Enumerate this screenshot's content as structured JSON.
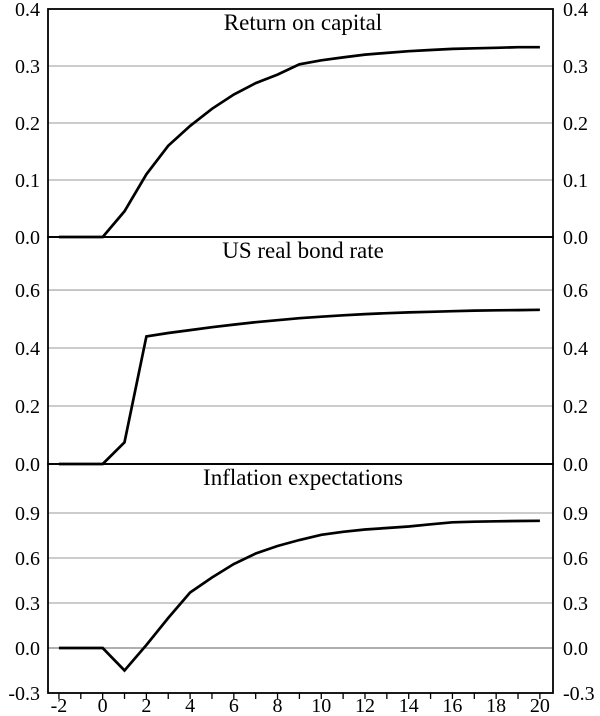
{
  "figure": {
    "background": "#ffffff",
    "series_color": "#000000",
    "grid_color": "#aeaeae",
    "zero_line_color": "#7f7f7f",
    "frame_color": "#000000"
  },
  "x_axis": {
    "range": [
      -2.5,
      20.6
    ],
    "minor_tick_min": -2,
    "minor_tick_max": 20,
    "minor_tick_step": 1,
    "labeled_values": [
      -2,
      0,
      2,
      4,
      6,
      8,
      10,
      12,
      14,
      16,
      18,
      20
    ],
    "labels": [
      "-2",
      "0",
      "2",
      "4",
      "6",
      "8",
      "10",
      "12",
      "14",
      "16",
      "18",
      "20"
    ]
  },
  "chart_data": [
    {
      "type": "line",
      "title": "Return on capital",
      "ylim": [
        0,
        0.4
      ],
      "ytick_values": [
        0.4,
        0.3,
        0.2,
        0.1,
        0.0
      ],
      "ytick_labels": [
        "0.4",
        "0.3",
        "0.2",
        "0.1",
        "0.0"
      ],
      "gridline_values": [
        0.1,
        0.2,
        0.3
      ],
      "zero_interior_line": false,
      "x": [
        -2,
        -1,
        0,
        1,
        2,
        3,
        4,
        5,
        6,
        7,
        8,
        9,
        10,
        11,
        12,
        13,
        14,
        15,
        16,
        17,
        18,
        19,
        20
      ],
      "values": [
        0,
        0,
        0,
        0.045,
        0.11,
        0.16,
        0.195,
        0.225,
        0.25,
        0.27,
        0.285,
        0.303,
        0.31,
        0.315,
        0.32,
        0.323,
        0.326,
        0.328,
        0.33,
        0.331,
        0.332,
        0.333,
        0.333
      ]
    },
    {
      "type": "line",
      "title": "US real bond rate",
      "ylim": [
        0,
        0.783
      ],
      "ytick_values": [
        0.6,
        0.4,
        0.2,
        0.0
      ],
      "ytick_labels": [
        "0.6",
        "0.4",
        "0.2",
        "0.0"
      ],
      "gridline_values": [
        0.2,
        0.4,
        0.6
      ],
      "zero_interior_line": false,
      "x": [
        -2,
        -1,
        0,
        1,
        2,
        3,
        4,
        5,
        6,
        7,
        8,
        9,
        10,
        11,
        12,
        13,
        14,
        15,
        16,
        17,
        18,
        19,
        20
      ],
      "values": [
        0,
        0,
        0,
        0.075,
        0.44,
        0.452,
        0.462,
        0.472,
        0.481,
        0.489,
        0.496,
        0.503,
        0.508,
        0.513,
        0.517,
        0.52,
        0.523,
        0.525,
        0.527,
        0.529,
        0.53,
        0.531,
        0.532
      ]
    },
    {
      "type": "line",
      "title": "Inflation expectations",
      "ylim": [
        -0.3,
        1.2267
      ],
      "ytick_values": [
        0.9,
        0.6,
        0.3,
        0.0,
        -0.3
      ],
      "ytick_labels": [
        "0.9",
        "0.6",
        "0.3",
        "0.0",
        "-0.3"
      ],
      "gridline_values": [
        0.3,
        0.6,
        0.9
      ],
      "zero_interior_line": true,
      "x": [
        -2,
        -1,
        0,
        1,
        2,
        3,
        4,
        5,
        6,
        7,
        8,
        9,
        10,
        11,
        12,
        13,
        14,
        15,
        16,
        17,
        18,
        19,
        20
      ],
      "values": [
        0,
        0,
        0,
        -0.15,
        0.02,
        0.2,
        0.37,
        0.47,
        0.56,
        0.63,
        0.68,
        0.72,
        0.755,
        0.775,
        0.79,
        0.8,
        0.81,
        0.825,
        0.838,
        0.842,
        0.845,
        0.847,
        0.848
      ]
    }
  ]
}
